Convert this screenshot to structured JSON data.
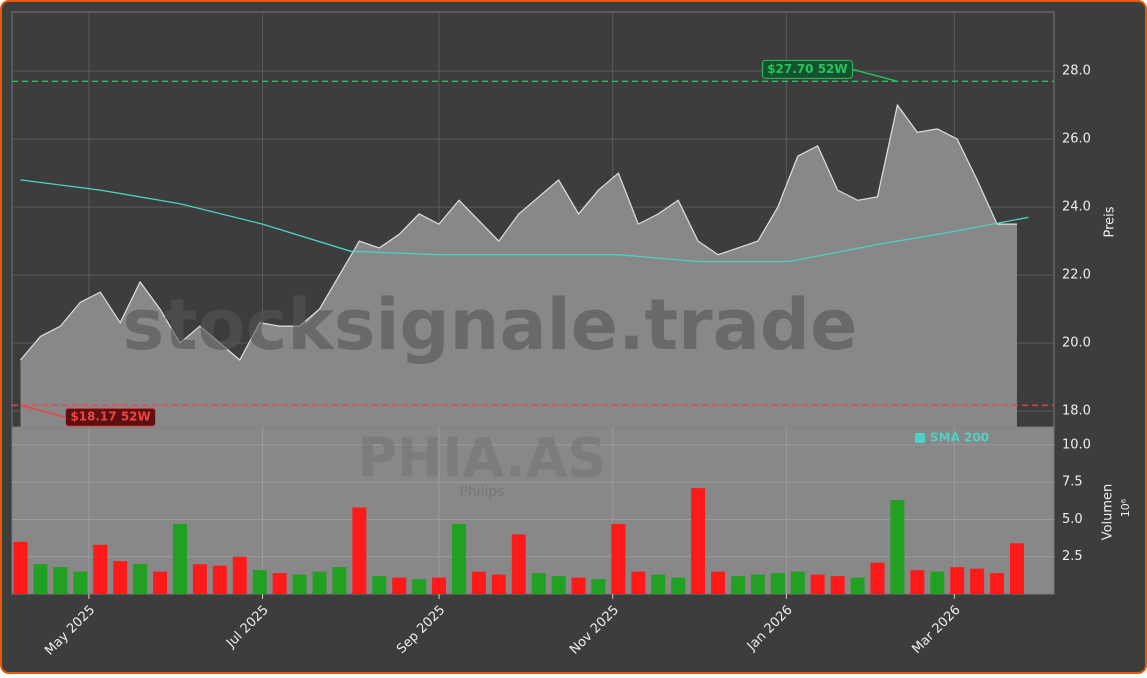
{
  "chart_data": {
    "type": "stock",
    "watermark": "stocksignale.trade",
    "ticker": "PHIA.AS",
    "company": "Philips",
    "y_label": "Preis",
    "y2_label": "Volumen",
    "y2_scale": "10⁶",
    "x": [
      "2025-04-07",
      "2025-04-14",
      "2025-04-21",
      "2025-04-28",
      "2025-05-05",
      "2025-05-12",
      "2025-05-19",
      "2025-05-26",
      "2025-06-02",
      "2025-06-09",
      "2025-06-16",
      "2025-06-23",
      "2025-06-30",
      "2025-07-07",
      "2025-07-14",
      "2025-07-21",
      "2025-07-28",
      "2025-08-04",
      "2025-08-11",
      "2025-08-18",
      "2025-08-25",
      "2025-09-01",
      "2025-09-08",
      "2025-09-15",
      "2025-09-22",
      "2025-09-29",
      "2025-10-06",
      "2025-10-13",
      "2025-10-20",
      "2025-10-27",
      "2025-11-03",
      "2025-11-10",
      "2025-11-17",
      "2025-11-24",
      "2025-12-01",
      "2025-12-08",
      "2025-12-15",
      "2025-12-22",
      "2025-12-29",
      "2026-01-05",
      "2026-01-12",
      "2026-01-19",
      "2026-01-26",
      "2026-02-02",
      "2026-02-09",
      "2026-02-16",
      "2026-02-23",
      "2026-03-02",
      "2026-03-09",
      "2026-03-16",
      "2026-03-23"
    ],
    "series": [
      {
        "name": "Close",
        "color": "#e0e0e0",
        "fill": "#888888",
        "values": [
          19.5,
          20.2,
          20.5,
          21.2,
          21.5,
          20.6,
          21.8,
          21.0,
          20.0,
          20.5,
          20.0,
          19.5,
          20.6,
          20.5,
          20.5,
          21.0,
          22.0,
          23.0,
          22.8,
          23.2,
          23.8,
          23.5,
          24.2,
          23.6,
          23.0,
          23.8,
          24.3,
          24.8,
          23.8,
          24.5,
          25.0,
          23.5,
          23.8,
          24.2,
          23.0,
          22.6,
          22.8,
          23.0,
          24.0,
          25.5,
          25.8,
          24.5,
          24.2,
          24.3,
          27.0,
          26.2,
          26.3,
          26.0,
          24.8,
          23.5,
          23.5
        ]
      },
      {
        "name": "Volumen",
        "axis": "y2",
        "values": [
          3.5,
          2.0,
          1.8,
          1.5,
          3.3,
          2.2,
          2.0,
          1.5,
          4.7,
          2.0,
          1.9,
          2.5,
          1.6,
          1.4,
          1.3,
          1.5,
          1.8,
          5.8,
          1.2,
          1.1,
          1.0,
          1.1,
          4.7,
          1.5,
          1.3,
          4.0,
          1.4,
          1.2,
          1.1,
          1.0,
          4.7,
          1.5,
          1.3,
          1.1,
          7.1,
          1.5,
          1.2,
          1.3,
          1.4,
          1.5,
          1.3,
          1.2,
          1.1,
          2.1,
          6.3,
          1.6,
          1.5,
          1.8,
          1.7,
          1.4,
          3.4
        ],
        "colors": [
          "#ff1a1a",
          "#22a022",
          "#22a022",
          "#22a022",
          "#ff1a1a",
          "#ff1a1a",
          "#22a022",
          "#ff1a1a",
          "#22a022",
          "#ff1a1a",
          "#ff1a1a",
          "#ff1a1a",
          "#22a022",
          "#ff1a1a",
          "#22a022",
          "#22a022",
          "#22a022",
          "#ff1a1a",
          "#22a022",
          "#ff1a1a",
          "#22a022",
          "#ff1a1a",
          "#22a022",
          "#ff1a1a",
          "#ff1a1a",
          "#ff1a1a",
          "#22a022",
          "#22a022",
          "#ff1a1a",
          "#22a022",
          "#ff1a1a",
          "#ff1a1a",
          "#22a022",
          "#22a022",
          "#ff1a1a",
          "#ff1a1a",
          "#22a022",
          "#22a022",
          "#22a022",
          "#22a022",
          "#ff1a1a",
          "#ff1a1a",
          "#22a022",
          "#ff1a1a",
          "#22a022",
          "#ff1a1a",
          "#22a022",
          "#ff1a1a",
          "#ff1a1a",
          "#ff1a1a",
          "#ff1a1a"
        ]
      }
    ],
    "sma": {
      "name": "SMA 200",
      "color": "#4fd1c5",
      "x": [
        "2025-04-07",
        "2025-05-05",
        "2025-06-02",
        "2025-07-01",
        "2025-08-01",
        "2025-09-01",
        "2025-10-01",
        "2025-11-03",
        "2025-12-01",
        "2026-01-02",
        "2026-02-02",
        "2026-03-02",
        "2026-03-27"
      ],
      "values": [
        24.8,
        24.5,
        24.1,
        23.5,
        22.7,
        22.6,
        22.6,
        22.6,
        22.4,
        22.4,
        22.9,
        23.3,
        23.7
      ]
    },
    "high": {
      "value": 27.7,
      "x": "2026-02-09",
      "label": "$27.70 52W",
      "color": "#22c55e"
    },
    "low": {
      "value": 18.17,
      "x": "2025-04-07",
      "label": "$18.17 52W",
      "color": "#ef4444"
    },
    "xlim": [
      "2025-04-04",
      "2026-04-05"
    ],
    "xticks": [
      {
        "value": "2025-05-01",
        "label": "May 2025"
      },
      {
        "value": "2025-07-01",
        "label": "Jul 2025"
      },
      {
        "value": "2025-09-01",
        "label": "Sep 2025"
      },
      {
        "value": "2025-11-01",
        "label": "Nov 2025"
      },
      {
        "value": "2026-01-01",
        "label": "Jan 2026"
      },
      {
        "value": "2026-03-01",
        "label": "Mar 2026"
      }
    ],
    "ylim": [
      17.53,
      29.74
    ],
    "yticks": [
      {
        "value": 18,
        "label": "18.0"
      },
      {
        "value": 20,
        "label": "20.0"
      },
      {
        "value": 22,
        "label": "22.0"
      },
      {
        "value": 24,
        "label": "24.0"
      },
      {
        "value": 26,
        "label": "26.0"
      },
      {
        "value": 28,
        "label": "28.0"
      }
    ],
    "y2lim": [
      0,
      11.2
    ],
    "y2ticks": [
      2.5,
      {
        "value": 5,
        "label": "5.0"
      },
      7.5,
      {
        "value": 10,
        "label": "10.0"
      }
    ],
    "grid": true
  }
}
